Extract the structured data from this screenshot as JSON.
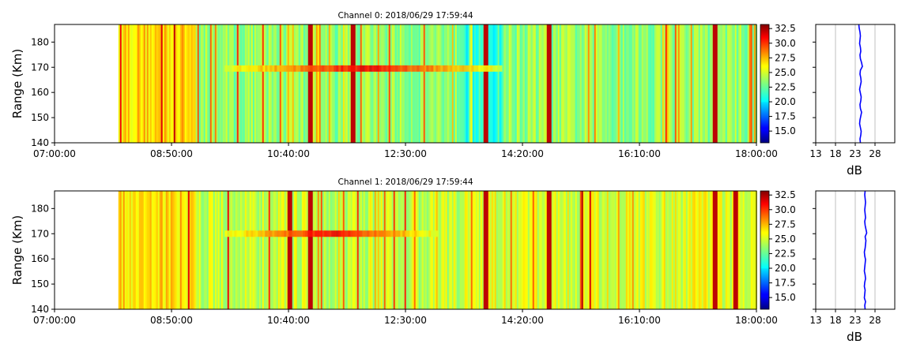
{
  "chart_data": [
    {
      "type": "heatmap",
      "title": "Channel 0: 2018/06/29 17:59:44",
      "ylabel": "Range (Km)",
      "xlabel": "",
      "x_tick_labels": [
        "07:00:00",
        "08:50:00",
        "10:40:00",
        "12:30:00",
        "14:20:00",
        "16:10:00",
        "18:00:00"
      ],
      "xlim": [
        "07:00:00",
        "18:00:00"
      ],
      "data_start": "08:00:00",
      "y_ticks": [
        140,
        150,
        160,
        170,
        180
      ],
      "ylim": [
        140,
        187
      ],
      "colorbar": {
        "ticks": [
          "15.0",
          "17.5",
          "20.0",
          "22.5",
          "25.0",
          "27.5",
          "30.0",
          "32.5"
        ],
        "range": [
          13,
          33.2
        ],
        "colormap": "jet"
      },
      "band_center_km": 169.5,
      "band_extent": [
        "09:40:00",
        "14:00:00"
      ],
      "strong_columns": [
        "11:00:00",
        "11:40:00",
        "13:45:00",
        "14:45:00",
        "17:20:00"
      ],
      "profile": {
        "xlabel": "dB",
        "x_ticks": [
          13,
          18,
          23,
          28
        ],
        "xlim": [
          13,
          33
        ],
        "values_range_km": [
          140,
          187
        ],
        "values": [
          24.3,
          24.2,
          24.4,
          24.5,
          24.3,
          24.1,
          24.2,
          24.4,
          24.6,
          24.3,
          24.2,
          24.4,
          24.5,
          24.3,
          24.1,
          24.3,
          24.5,
          24.4,
          24.2,
          24.3,
          24.8,
          24.6,
          24.3,
          24.2,
          24.4,
          24.3,
          24.1,
          24.2,
          24.3,
          24.2,
          24.0,
          23.9
        ]
      }
    },
    {
      "type": "heatmap",
      "title": "Channel 1: 2018/06/29 17:59:44",
      "ylabel": "Range (Km)",
      "xlabel": "",
      "x_tick_labels": [
        "07:00:00",
        "08:50:00",
        "10:40:00",
        "12:30:00",
        "14:20:00",
        "16:10:00",
        "18:00:00"
      ],
      "xlim": [
        "07:00:00",
        "18:00:00"
      ],
      "data_start": "08:00:00",
      "y_ticks": [
        140,
        150,
        160,
        170,
        180
      ],
      "ylim": [
        140,
        187
      ],
      "colorbar": {
        "ticks": [
          "15.0",
          "17.5",
          "20.0",
          "22.5",
          "25.0",
          "27.5",
          "30.0",
          "32.5"
        ],
        "range": [
          13,
          33.2
        ],
        "colormap": "jet"
      },
      "band_center_km": 170,
      "band_extent": [
        "09:40:00",
        "13:00:00"
      ],
      "strong_columns": [
        "10:40:00",
        "11:00:00",
        "13:45:00",
        "14:45:00",
        "17:20:00",
        "17:40:00"
      ],
      "profile": {
        "xlabel": "dB",
        "x_ticks": [
          13,
          18,
          23,
          28
        ],
        "xlim": [
          13,
          33
        ],
        "values_range_km": [
          140,
          187
        ],
        "values": [
          25.5,
          25.4,
          25.6,
          25.3,
          25.4,
          25.5,
          25.3,
          25.4,
          25.6,
          25.5,
          25.3,
          25.4,
          25.5,
          25.6,
          25.4,
          25.3,
          25.5,
          25.6,
          25.7,
          25.5,
          25.9,
          25.7,
          25.5,
          25.4,
          25.6,
          25.5,
          25.4,
          25.5,
          25.6,
          25.5,
          25.4,
          25.5
        ]
      }
    }
  ]
}
